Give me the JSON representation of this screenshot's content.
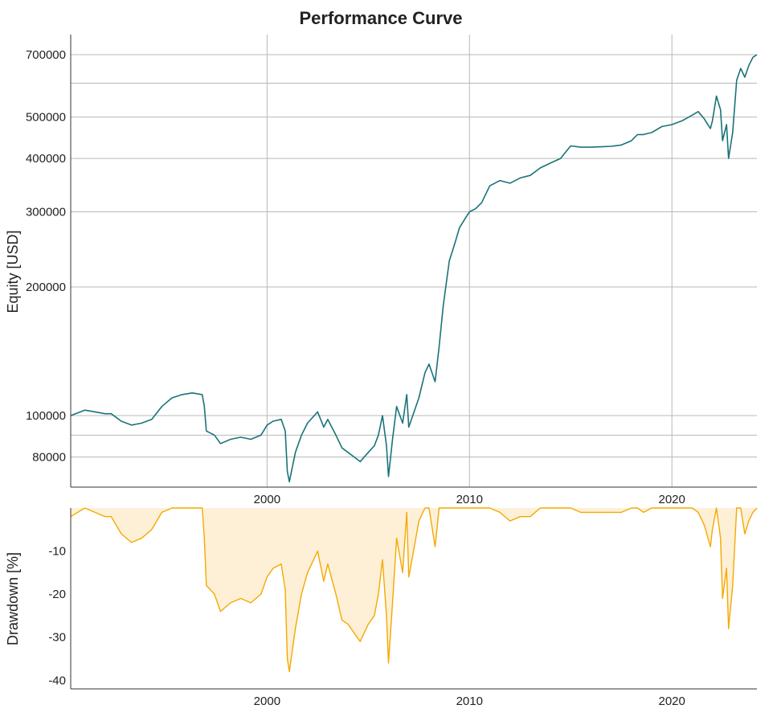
{
  "chart_data": [
    {
      "type": "line",
      "title": "Performance Curve",
      "ylabel": "Equity [USD]",
      "xlabel": "",
      "y_scale": "log",
      "ylim": [
        68000,
        780000
      ],
      "xlim": [
        1990.3,
        2024.2
      ],
      "x_ticks": [
        2000,
        2010,
        2020
      ],
      "x_tick_labels": [
        "2000",
        "2010",
        "2020"
      ],
      "y_ticks": [
        80000,
        100000,
        200000,
        300000,
        400000,
        500000,
        700000
      ],
      "y_tick_labels": [
        "80000",
        "100000",
        "200000",
        "300000",
        "400000",
        "500000",
        "700000"
      ],
      "extra_gridlines_y": [
        90000,
        600000
      ],
      "grid": true,
      "series": [
        {
          "color": "#1a7378",
          "x": [
            1990.3,
            1991.0,
            1991.5,
            1992.0,
            1992.3,
            1992.8,
            1993.3,
            1993.8,
            1994.3,
            1994.8,
            1995.3,
            1995.8,
            1996.3,
            1996.8,
            1996.9,
            1997.0,
            1997.4,
            1997.7,
            1998.2,
            1998.7,
            1999.2,
            1999.7,
            2000.0,
            2000.3,
            2000.7,
            2000.9,
            2001.0,
            2001.1,
            2001.4,
            2001.7,
            2002.0,
            2002.5,
            2002.8,
            2003.0,
            2003.4,
            2003.7,
            2004.0,
            2004.3,
            2004.6,
            2005.0,
            2005.3,
            2005.5,
            2005.7,
            2005.9,
            2006.0,
            2006.2,
            2006.4,
            2006.7,
            2006.9,
            2007.0,
            2007.2,
            2007.5,
            2007.8,
            2008.0,
            2008.3,
            2008.5,
            2008.7,
            2009.0,
            2009.3,
            2009.5,
            2009.8,
            2010.0,
            2010.3,
            2010.6,
            2011.0,
            2011.5,
            2012.0,
            2012.5,
            2013.0,
            2013.5,
            2014.0,
            2014.5,
            2015.0,
            2015.5,
            2016.0,
            2016.5,
            2017.0,
            2017.5,
            2018.0,
            2018.3,
            2018.6,
            2019.0,
            2019.5,
            2020.0,
            2020.5,
            2021.0,
            2021.3,
            2021.6,
            2021.9,
            2022.0,
            2022.2,
            2022.4,
            2022.5,
            2022.7,
            2022.8,
            2023.0,
            2023.2,
            2023.4,
            2023.6,
            2023.8,
            2024.0,
            2024.2
          ],
          "values": [
            100000,
            103000,
            102000,
            101000,
            101000,
            97000,
            95000,
            96000,
            98000,
            105000,
            110000,
            112000,
            113000,
            112000,
            105000,
            92000,
            90000,
            86000,
            88000,
            89000,
            88000,
            90000,
            95000,
            97000,
            98000,
            92000,
            74000,
            70000,
            82000,
            90000,
            96000,
            102000,
            94000,
            98000,
            90000,
            84000,
            82000,
            80000,
            78000,
            82000,
            85000,
            90000,
            100000,
            85000,
            72000,
            88000,
            105000,
            96000,
            112000,
            94000,
            100000,
            110000,
            126000,
            132000,
            120000,
            145000,
            180000,
            230000,
            255000,
            275000,
            290000,
            300000,
            305000,
            315000,
            345000,
            355000,
            350000,
            360000,
            365000,
            380000,
            390000,
            400000,
            428000,
            425000,
            425000,
            426000,
            427000,
            430000,
            440000,
            455000,
            455000,
            460000,
            475000,
            480000,
            490000,
            505000,
            515000,
            495000,
            470000,
            490000,
            560000,
            520000,
            440000,
            480000,
            400000,
            460000,
            610000,
            650000,
            620000,
            660000,
            690000,
            700000
          ]
        }
      ]
    },
    {
      "type": "area",
      "title": "",
      "ylabel": "Drawdown [%]",
      "xlabel": "",
      "ylim": [
        -42,
        0
      ],
      "xlim": [
        1990.3,
        2024.2
      ],
      "x_ticks": [
        2000,
        2010,
        2020
      ],
      "x_tick_labels": [
        "2000",
        "2010",
        "2020"
      ],
      "y_ticks": [
        -10,
        -20,
        -30,
        -40
      ],
      "y_tick_labels": [
        "-10",
        "-20",
        "-30",
        "-40"
      ],
      "grid": false,
      "series": [
        {
          "color": "#f5a800",
          "fill_color": "#fdf0d6",
          "x": [
            1990.3,
            1991.0,
            1991.5,
            1992.0,
            1992.3,
            1992.8,
            1993.3,
            1993.8,
            1994.3,
            1994.8,
            1995.3,
            1995.8,
            1996.3,
            1996.8,
            1996.9,
            1997.0,
            1997.4,
            1997.7,
            1998.2,
            1998.7,
            1999.2,
            1999.7,
            2000.0,
            2000.3,
            2000.7,
            2000.9,
            2001.0,
            2001.1,
            2001.4,
            2001.7,
            2002.0,
            2002.5,
            2002.8,
            2003.0,
            2003.4,
            2003.7,
            2004.0,
            2004.3,
            2004.6,
            2005.0,
            2005.3,
            2005.5,
            2005.7,
            2005.9,
            2006.0,
            2006.2,
            2006.4,
            2006.7,
            2006.9,
            2007.0,
            2007.2,
            2007.5,
            2007.8,
            2008.0,
            2008.3,
            2008.5,
            2008.7,
            2009.0,
            2009.3,
            2009.5,
            2009.8,
            2010.0,
            2010.3,
            2010.6,
            2011.0,
            2011.5,
            2012.0,
            2012.5,
            2013.0,
            2013.5,
            2014.0,
            2014.5,
            2015.0,
            2015.5,
            2016.0,
            2016.5,
            2017.0,
            2017.5,
            2018.0,
            2018.3,
            2018.6,
            2019.0,
            2019.5,
            2020.0,
            2020.5,
            2021.0,
            2021.3,
            2021.6,
            2021.9,
            2022.0,
            2022.2,
            2022.4,
            2022.5,
            2022.7,
            2022.8,
            2023.0,
            2023.2,
            2023.4,
            2023.6,
            2023.8,
            2024.0,
            2024.2
          ],
          "values": [
            -2,
            0,
            -1,
            -2,
            -2,
            -6,
            -8,
            -7,
            -5,
            -1,
            0,
            0,
            0,
            0,
            -7,
            -18,
            -20,
            -24,
            -22,
            -21,
            -22,
            -20,
            -16,
            -14,
            -13,
            -19,
            -35,
            -38,
            -28,
            -20,
            -15,
            -10,
            -17,
            -13,
            -20,
            -26,
            -27,
            -29,
            -31,
            -27,
            -25,
            -20,
            -12,
            -25,
            -36,
            -22,
            -7,
            -15,
            -1,
            -16,
            -11,
            -3,
            0,
            0,
            -9,
            0,
            0,
            0,
            0,
            0,
            0,
            0,
            0,
            0,
            0,
            -1,
            -3,
            -2,
            -2,
            0,
            0,
            0,
            0,
            -1,
            -1,
            -1,
            -1,
            -1,
            0,
            0,
            -1,
            0,
            0,
            0,
            0,
            0,
            -1,
            -4,
            -9,
            -5,
            0,
            -7,
            -21,
            -14,
            -28,
            -18,
            0,
            0,
            -6,
            -3,
            -1,
            0
          ]
        }
      ]
    }
  ]
}
